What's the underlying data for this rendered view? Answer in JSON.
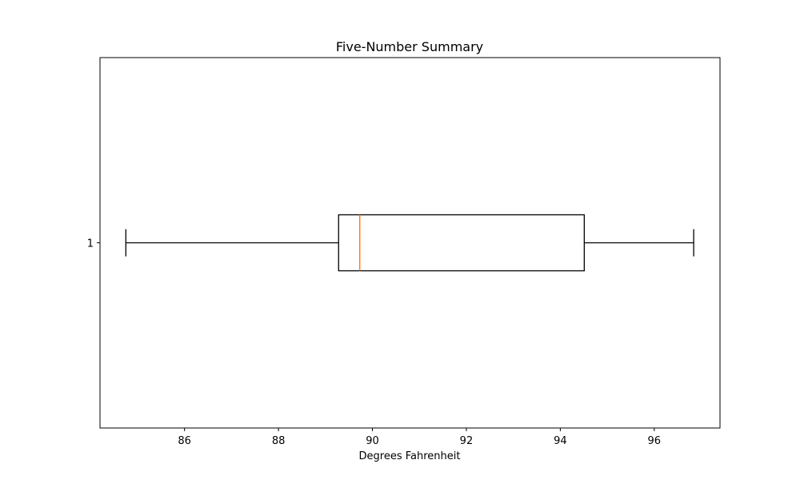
{
  "chart_data": {
    "type": "boxplot",
    "title": "Five-Number Summary",
    "xlabel": "Degrees Fahrenheit",
    "ylabel": "",
    "orientation": "horizontal",
    "xlim": [
      84.2,
      97.4
    ],
    "x_ticks": [
      86,
      88,
      90,
      92,
      94,
      96
    ],
    "y_ticks": [
      "1"
    ],
    "grid": false,
    "series": [
      {
        "label": "1",
        "min": 84.75,
        "q1": 89.28,
        "median": 89.73,
        "q3": 94.51,
        "max": 96.84
      }
    ],
    "colors": {
      "box": "#000000",
      "median": "#ff7f0e",
      "whisker": "#000000"
    }
  }
}
